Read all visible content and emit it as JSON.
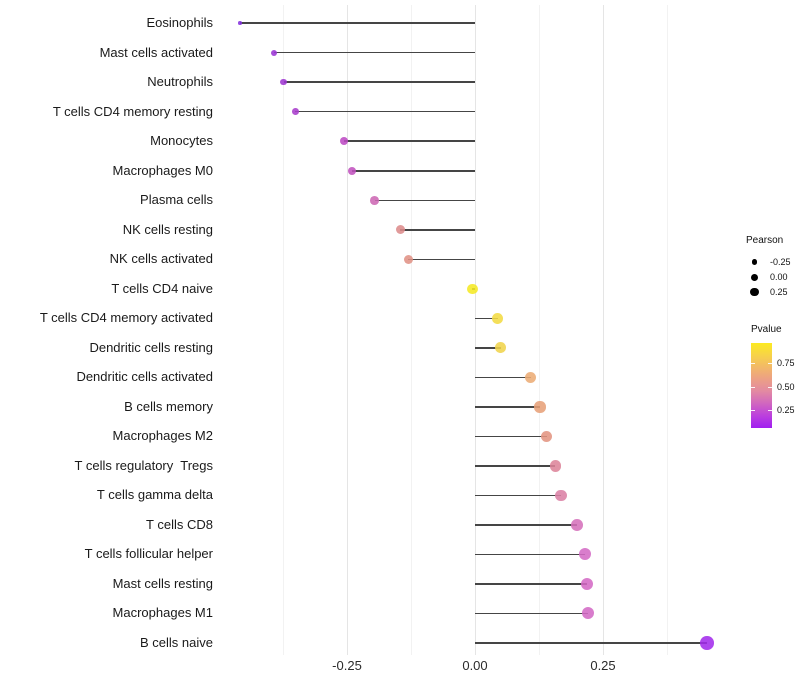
{
  "chart_data": {
    "type": "lollipop",
    "title": "",
    "xlabel": "",
    "ylabel": "",
    "grid": "vertical-only",
    "xlim": [
      -0.505,
      0.505
    ],
    "x_axis": {
      "tick_labels": [
        "-0.25",
        "0.00",
        "0.25"
      ],
      "tick_values": [
        -0.25,
        0.0,
        0.25
      ],
      "minor_tick_values": [
        -0.375,
        -0.125,
        0.125,
        0.375
      ]
    },
    "encoding": {
      "x": "Pearson correlation",
      "point_size": "Pearson",
      "point_color": "Pvalue"
    },
    "points": [
      {
        "label": "Eosinophils",
        "pearson": -0.459,
        "color": "#8430DE"
      },
      {
        "label": "Mast cells activated",
        "pearson": -0.392,
        "color": "#9A34D4"
      },
      {
        "label": "Neutrophils",
        "pearson": -0.374,
        "color": "#9D36D1"
      },
      {
        "label": "T cells CD4 memory resting",
        "pearson": -0.351,
        "color": "#A83CCB"
      },
      {
        "label": "Monocytes",
        "pearson": -0.255,
        "color": "#BC4AC3"
      },
      {
        "label": "Macrophages M0",
        "pearson": -0.24,
        "color": "#C152BF"
      },
      {
        "label": "Plasma cells",
        "pearson": -0.196,
        "color": "#CC66B3"
      },
      {
        "label": "NK cells resting",
        "pearson": -0.146,
        "color": "#DD8B8B"
      },
      {
        "label": "NK cells activated",
        "pearson": -0.13,
        "color": "#E09184"
      },
      {
        "label": "T cells CD4 naive",
        "pearson": -0.005,
        "color": "#F5E922"
      },
      {
        "label": "T cells CD4 memory activated",
        "pearson": 0.044,
        "color": "#F2DA42"
      },
      {
        "label": "Dendritic cells resting",
        "pearson": 0.05,
        "color": "#F0D34B"
      },
      {
        "label": "Dendritic cells activated",
        "pearson": 0.109,
        "color": "#ECAB74"
      },
      {
        "label": "B cells memory",
        "pearson": 0.127,
        "color": "#E7A077"
      },
      {
        "label": "Macrophages M2",
        "pearson": 0.14,
        "color": "#E29380"
      },
      {
        "label": "T cells regulatory  Tregs",
        "pearson": 0.157,
        "color": "#DC8399"
      },
      {
        "label": "T cells gamma delta",
        "pearson": 0.168,
        "color": "#DA80A4"
      },
      {
        "label": "T cells CD8",
        "pearson": 0.2,
        "color": "#D56FBA"
      },
      {
        "label": "T cells follicular helper",
        "pearson": 0.214,
        "color": "#D36AC4"
      },
      {
        "label": "Mast cells resting",
        "pearson": 0.219,
        "color": "#D369C4"
      },
      {
        "label": "Macrophages M1",
        "pearson": 0.221,
        "color": "#D269C4"
      },
      {
        "label": "B cells naive",
        "pearson": 0.453,
        "color": "#A22BEB"
      }
    ],
    "legend": {
      "size_legend": {
        "title": "Pearson",
        "entries": [
          {
            "label": "-0.25",
            "diameter": 5.4
          },
          {
            "label": "0.00",
            "diameter": 7.0
          },
          {
            "label": "0.25",
            "diameter": 8.4
          }
        ]
      },
      "color_legend": {
        "title": "Pvalue",
        "tick_labels": [
          "0.75",
          "0.50",
          "0.25"
        ],
        "gradient_bottom_to_top": [
          "#A01EF0",
          "#BB3FDE",
          "#D065C0",
          "#E289A3",
          "#EC9F86",
          "#F2B868",
          "#F7D348",
          "#FCEA21"
        ]
      }
    }
  }
}
